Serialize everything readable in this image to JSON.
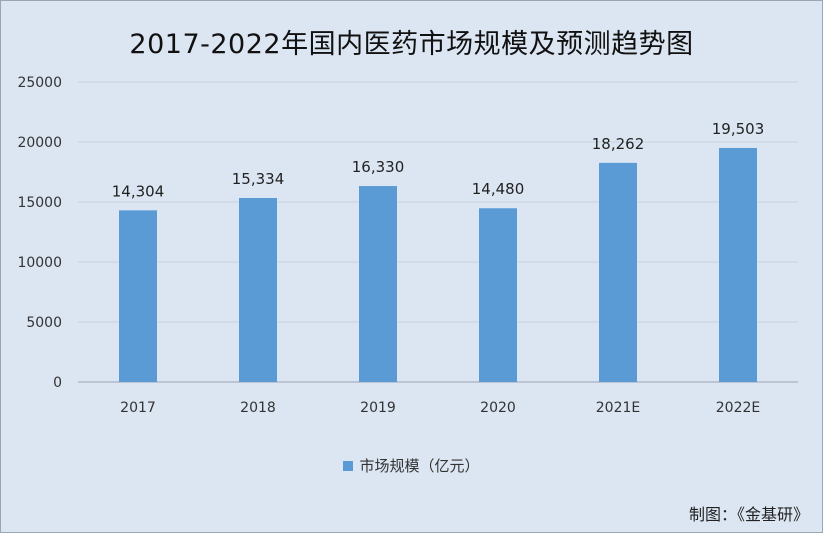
{
  "chart_data": {
    "type": "bar",
    "title": "2017-2022年国内医药市场规模及预测趋势图",
    "categories": [
      "2017",
      "2018",
      "2019",
      "2020",
      "2021E",
      "2022E"
    ],
    "series": [
      {
        "name": "市场规模（亿元）",
        "values": [
          14304,
          15334,
          16330,
          14480,
          18262,
          19503
        ]
      }
    ],
    "data_labels": [
      "14,304",
      "15,334",
      "16,330",
      "14,480",
      "18,262",
      "19,503"
    ],
    "ylim": [
      0,
      25000
    ],
    "yticks": [
      0,
      5000,
      10000,
      15000,
      20000,
      25000
    ],
    "grid": true,
    "legend_position": "bottom",
    "colors": {
      "bar": "#5b9bd5",
      "background": "#dce6f2",
      "grid": "#c9d3de"
    }
  },
  "credit": "制图：《金基研》"
}
